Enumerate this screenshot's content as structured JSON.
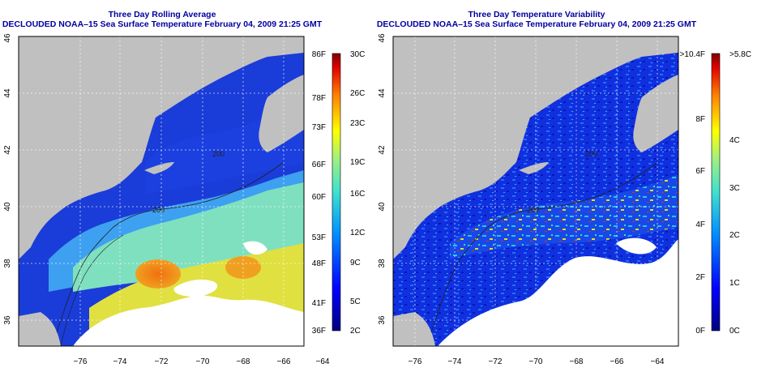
{
  "panels": [
    {
      "title_line1": "Three Day Rolling Average",
      "title_line2": "DECLOUDED NOAA–15 Sea Surface Temperature February 04, 2009 21:25 GMT",
      "x_ticks": [
        "−76",
        "−74",
        "−72",
        "−70",
        "−68",
        "−66",
        "−64"
      ],
      "y_ticks": [
        "36",
        "38",
        "40",
        "42",
        "44",
        "46"
      ],
      "contour_labels": [
        "200",
        "200",
        "200",
        "200"
      ],
      "colorbar_left": [
        "86F",
        "78F",
        "73F",
        "66F",
        "60F",
        "53F",
        "48F",
        "41F",
        "36F"
      ],
      "colorbar_right": [
        "30C",
        "26C",
        "23C",
        "19C",
        "16C",
        "12C",
        "9C",
        "5C",
        "2C"
      ]
    },
    {
      "title_line1": "Three Day Temperature Variability",
      "title_line2": "DECLOUDED NOAA–15 Sea Surface Temperature February 04, 2009 21:25 GMT",
      "x_ticks": [
        "−76",
        "−74",
        "−72",
        "−70",
        "−68",
        "−66",
        "−64"
      ],
      "y_ticks": [
        "36",
        "38",
        "40",
        "42",
        "44",
        "46"
      ],
      "contour_labels": [
        "200",
        "200",
        "200",
        "200"
      ],
      "colorbar_left": [
        ">10.4F",
        "8F",
        "6F",
        "4F",
        "2F",
        "0F"
      ],
      "colorbar_right": [
        ">5.8C",
        "4C",
        "3C",
        "2C",
        "1C",
        "0C"
      ]
    }
  ],
  "colors": {
    "land": "#c0c0c0",
    "cloud": "#ffffff",
    "title": "#0000a0",
    "ocean_cold": "#1a3cd8",
    "ocean_cool": "#2e7ff0",
    "ocean_mid": "#7fe0c0",
    "ocean_warm": "#e0e040",
    "ocean_hot": "#f07810"
  }
}
